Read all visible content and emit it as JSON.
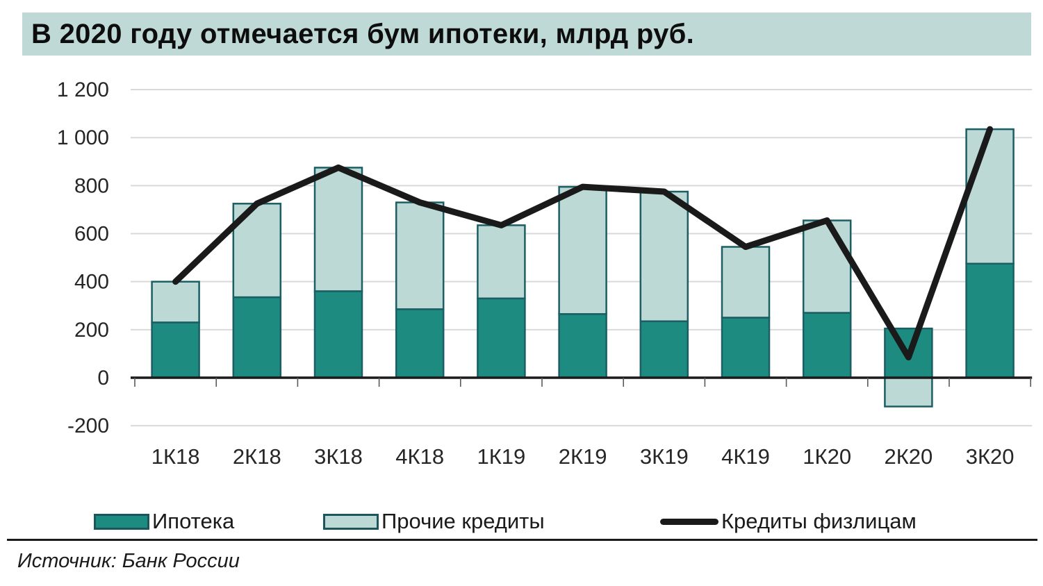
{
  "title": "В 2020 году отмечается бум ипотеки, млрд руб.",
  "source": "Источник: Банк России",
  "legend": [
    {
      "label": "Ипотека",
      "type": "box",
      "color": "#1e8b81"
    },
    {
      "label": "Прочие кредиты",
      "type": "box",
      "color": "#bcd9d6"
    },
    {
      "label": "Кредиты физлицам",
      "type": "line",
      "color": "#1a1a1a"
    }
  ],
  "chart_data": {
    "type": "bar",
    "subtype": "stacked-bars-with-line-overlay",
    "title": "В 2020 году отмечается бум ипотеки, млрд руб.",
    "categories": [
      "1К18",
      "2К18",
      "3К18",
      "4К18",
      "1К19",
      "2К19",
      "3К19",
      "4К19",
      "1К20",
      "2К20",
      "3К20"
    ],
    "series": [
      {
        "name": "Ипотека",
        "type": "bar",
        "color": "#1e8b81",
        "values": [
          230,
          335,
          360,
          285,
          330,
          265,
          235,
          250,
          270,
          205,
          475
        ]
      },
      {
        "name": "Прочие кредиты",
        "type": "bar",
        "color": "#bcd9d6",
        "values": [
          170,
          390,
          515,
          445,
          305,
          530,
          540,
          295,
          385,
          -120,
          560
        ]
      },
      {
        "name": "Кредиты физлицам",
        "type": "line",
        "color": "#1a1a1a",
        "values": [
          400,
          725,
          875,
          730,
          635,
          795,
          775,
          545,
          655,
          85,
          1035
        ]
      }
    ],
    "xlabel": "",
    "ylabel": "",
    "ylim": [
      -200,
      1200
    ],
    "ytick_step": 200,
    "ytick_labels": [
      "-200",
      "0",
      "200",
      "400",
      "600",
      "800",
      "1 000",
      "1 200"
    ],
    "grid": "horizontal",
    "legend_position": "bottom",
    "gridline_color": "#d9d9d9",
    "axis_color": "#1a1a1a",
    "bar_border_color": "#1b5e63",
    "tick_color": "#595959",
    "label_color": "#262626"
  }
}
